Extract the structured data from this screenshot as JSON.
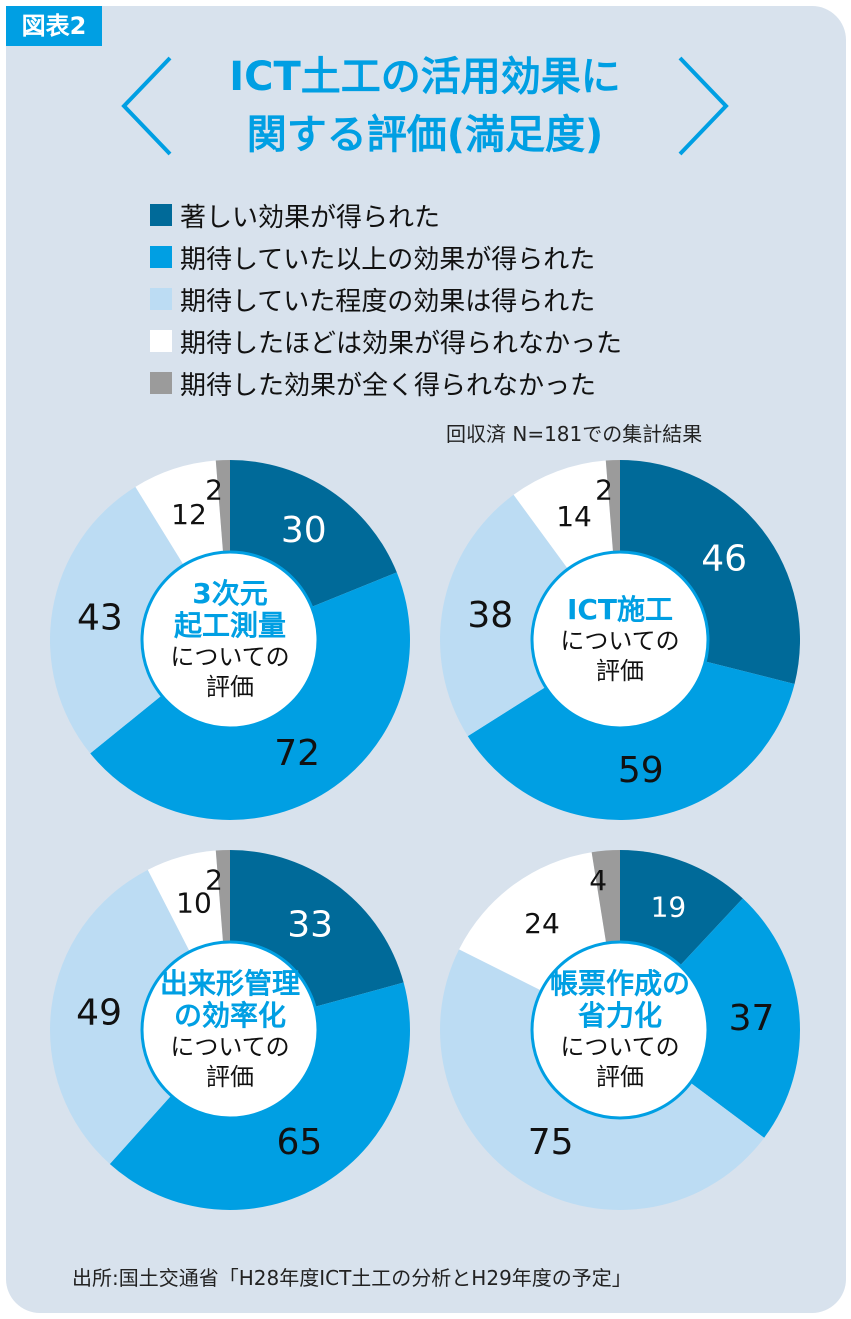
{
  "figure_label": "図表2",
  "title_line1": "ICT土工の活用効果に",
  "title_line2": "関する評価(満足度)",
  "legend": [
    {
      "label": "著しい効果が得られた",
      "color": "#006a99"
    },
    {
      "label": "期待していた以上の効果が得られた",
      "color": "#009fe3"
    },
    {
      "label": "期待していた程度の効果は得られた",
      "color": "#bcdcf3"
    },
    {
      "label": "期待したほどは効果が得られなかった",
      "color": "#ffffff"
    },
    {
      "label": "期待した効果が全く得られなかった",
      "color": "#9b9b9b"
    }
  ],
  "note": "回収済 N=181での集計結果",
  "source": "出所:国土交通省「H28年度ICT土工の分析とH29年度の予定」",
  "chart_data": [
    {
      "type": "pie",
      "center_bold": [
        "3次元",
        "起工測量"
      ],
      "center_normal": [
        "についての",
        "評価"
      ],
      "categories": [
        "著しい効果が得られた",
        "期待していた以上の効果が得られた",
        "期待していた程度の効果は得られた",
        "期待したほどは効果が得られなかった",
        "期待した効果が全く得られなかった"
      ],
      "values": [
        30,
        72,
        43,
        12,
        2
      ]
    },
    {
      "type": "pie",
      "center_bold": [
        "ICT施工"
      ],
      "center_normal": [
        "についての",
        "評価"
      ],
      "categories": [
        "著しい効果が得られた",
        "期待していた以上の効果が得られた",
        "期待していた程度の効果は得られた",
        "期待したほどは効果が得られなかった",
        "期待した効果が全く得られなかった"
      ],
      "values": [
        46,
        59,
        38,
        14,
        2
      ]
    },
    {
      "type": "pie",
      "center_bold": [
        "出来形管理",
        "の効率化"
      ],
      "center_normal": [
        "についての",
        "評価"
      ],
      "categories": [
        "著しい効果が得られた",
        "期待していた以上の効果が得られた",
        "期待していた程度の効果は得られた",
        "期待したほどは効果が得られなかった",
        "期待した効果が全く得られなかった"
      ],
      "values": [
        33,
        65,
        49,
        10,
        2
      ]
    },
    {
      "type": "pie",
      "center_bold": [
        "帳票作成の",
        "省力化"
      ],
      "center_normal": [
        "についての",
        "評価"
      ],
      "categories": [
        "著しい効果が得られた",
        "期待していた以上の効果が得られた",
        "期待していた程度の効果は得られた",
        "期待したほどは効果が得られなかった",
        "期待した効果が全く得られなかった"
      ],
      "values": [
        19,
        37,
        75,
        24,
        4
      ]
    }
  ]
}
